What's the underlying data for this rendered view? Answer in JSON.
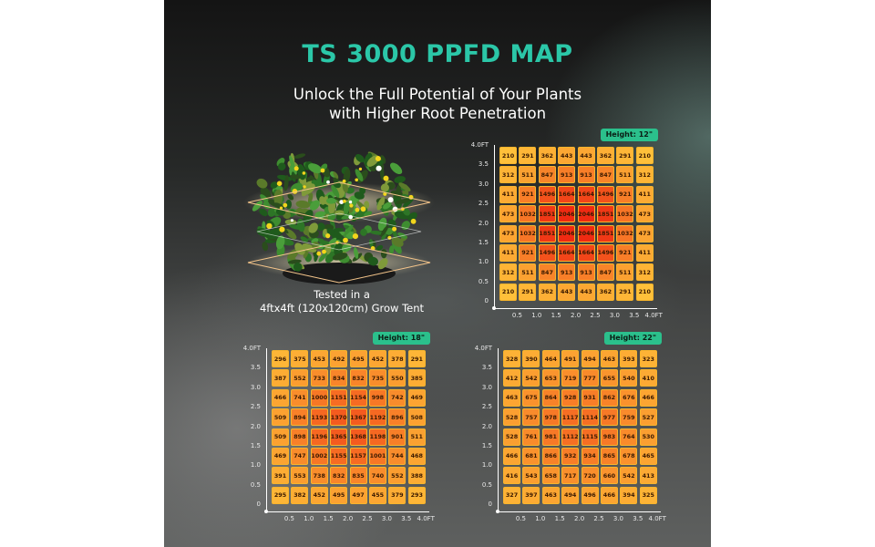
{
  "title": "TS 3000 PPFD MAP",
  "subtitle": [
    "Unlock the Full Potential of Your Plants",
    "with Higher Root Penetration"
  ],
  "caption": [
    "Tested in a",
    "4ftx4ft (120x120cm) Grow Tent"
  ],
  "colors": {
    "accent": "#2bc7a8",
    "badge": "#2bc08c",
    "cell_low": "#ffc23a",
    "cell_high": "#ef2a12"
  },
  "axes": {
    "y_labels": [
      "4.0FT",
      "3.5",
      "3.0",
      "2.5",
      "2.0",
      "1.5",
      "1.0",
      "0.5",
      "0"
    ],
    "x_labels": [
      "0.5",
      "1.0",
      "1.5",
      "2.0",
      "2.5",
      "3.0",
      "3.5",
      "4.0FT"
    ]
  },
  "maps": [
    {
      "badge": "Height: 12\"",
      "values": [
        [
          210,
          291,
          362,
          443,
          443,
          362,
          291,
          210
        ],
        [
          312,
          511,
          847,
          913,
          913,
          847,
          511,
          312
        ],
        [
          411,
          921,
          1496,
          1664,
          1664,
          1496,
          921,
          411
        ],
        [
          473,
          1032,
          1851,
          2046,
          2046,
          1851,
          1032,
          473
        ],
        [
          473,
          1032,
          1851,
          2046,
          2046,
          1851,
          1032,
          473
        ],
        [
          411,
          921,
          1496,
          1664,
          1664,
          1496,
          921,
          411
        ],
        [
          312,
          511,
          847,
          913,
          913,
          847,
          511,
          312
        ],
        [
          210,
          291,
          362,
          443,
          443,
          362,
          291,
          210
        ]
      ]
    },
    {
      "badge": "Height: 18\"",
      "values": [
        [
          296,
          375,
          453,
          492,
          495,
          452,
          378,
          291
        ],
        [
          387,
          552,
          733,
          834,
          832,
          735,
          550,
          385
        ],
        [
          466,
          741,
          1000,
          1151,
          1154,
          998,
          742,
          469
        ],
        [
          509,
          894,
          1193,
          1370,
          1367,
          1192,
          896,
          508
        ],
        [
          509,
          898,
          1196,
          1365,
          1368,
          1198,
          901,
          511
        ],
        [
          469,
          747,
          1002,
          1155,
          1157,
          1001,
          744,
          468
        ],
        [
          391,
          553,
          738,
          832,
          835,
          740,
          552,
          388
        ],
        [
          295,
          382,
          452,
          495,
          497,
          455,
          379,
          293
        ]
      ]
    },
    {
      "badge": "Height: 22\"",
      "values": [
        [
          328,
          390,
          464,
          491,
          494,
          463,
          393,
          323
        ],
        [
          412,
          542,
          653,
          719,
          777,
          655,
          540,
          410
        ],
        [
          463,
          675,
          864,
          928,
          931,
          862,
          676,
          466
        ],
        [
          528,
          757,
          978,
          1117,
          1114,
          977,
          759,
          527
        ],
        [
          528,
          761,
          981,
          1112,
          1115,
          983,
          764,
          530
        ],
        [
          466,
          681,
          866,
          932,
          934,
          865,
          678,
          465
        ],
        [
          416,
          543,
          658,
          717,
          720,
          660,
          542,
          413
        ],
        [
          327,
          397,
          463,
          494,
          496,
          466,
          394,
          325
        ]
      ]
    }
  ]
}
